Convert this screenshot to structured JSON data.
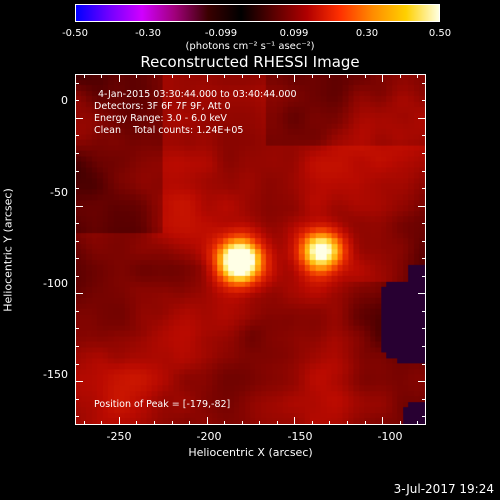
{
  "colorbar": {
    "gradient": [
      "#0000ff",
      "#7000ff",
      "#d000ff",
      "#a0007a",
      "#3a0000",
      "#000000",
      "#5a0000",
      "#b00000",
      "#ff3000",
      "#ff8c00",
      "#ffd000",
      "#ffffe0"
    ],
    "ticks": [
      "-0.50",
      "-0.30",
      "-0.099",
      "0.099",
      "0.30",
      "0.50"
    ],
    "unit": "(photons cm⁻² s⁻¹ asec⁻²)"
  },
  "title": "Reconstructed RHESSI Image",
  "info": {
    "time": "4-Jan-2015 03:30:44.000 to 03:40:44.000",
    "detectors": "Detectors: 3F 6F 7F 9F, Att 0",
    "energy": "Energy Range: 3.0 - 6.0 keV",
    "clean": "Clean    Total counts: 1.24E+05",
    "peak": "Position of Peak = [-179,-82]"
  },
  "axes": {
    "xlabel": "Heliocentric X (arcsec)",
    "ylabel": "Heliocentric Y (arcsec)",
    "xticks": [
      "-250",
      "-200",
      "-150",
      "-100"
    ],
    "yticks": [
      "0",
      "-50",
      "-100",
      "-150"
    ],
    "xlim": [
      -275,
      -75
    ],
    "ylim": [
      -175,
      25
    ]
  },
  "image": {
    "sources": [
      {
        "x": -181,
        "y": -82,
        "intensity": 1.0
      },
      {
        "x": -134,
        "y": -76,
        "intensity": 0.8
      }
    ]
  },
  "datestamp": "3-Jul-2017 19:24"
}
